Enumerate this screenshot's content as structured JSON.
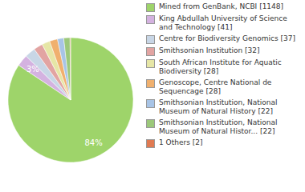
{
  "chart_data": {
    "type": "pie",
    "categories": [
      "Mined from GenBank, NCBI [1148]",
      "King Abdullah University of Science and Technology [41]",
      "Centre for Biodiversity Genomics [37]",
      "Smithsonian Institution [32]",
      "South African Institute for Aquatic Biodiversity [28]",
      "Genoscope, Centre National de Sequencage [28]",
      "Smithsonian Institution, National Museum of Natural History [22]",
      "Smithsonian Institution, National Museum of Natural Histor... [22]",
      "1 Others [2]"
    ],
    "values": [
      1148,
      41,
      37,
      32,
      28,
      28,
      22,
      22,
      2
    ],
    "value_labels": [
      "84%",
      "3%",
      null,
      null,
      null,
      null,
      null,
      null,
      null
    ],
    "colors": [
      "#9ed46a",
      "#d4b2e0",
      "#c8d6e6",
      "#e2a4a2",
      "#e6e6a6",
      "#f0b06e",
      "#a8c4e6",
      "#9cc87a",
      "#e07a52"
    ],
    "data_labels": true,
    "legend": "right"
  }
}
